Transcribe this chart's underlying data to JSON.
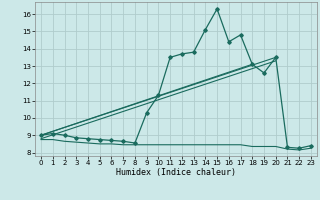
{
  "xlabel": "Humidex (Indice chaleur)",
  "xlim": [
    -0.5,
    23.5
  ],
  "ylim": [
    7.8,
    16.7
  ],
  "yticks": [
    8,
    9,
    10,
    11,
    12,
    13,
    14,
    15,
    16
  ],
  "xticks": [
    0,
    1,
    2,
    3,
    4,
    5,
    6,
    7,
    8,
    9,
    10,
    11,
    12,
    13,
    14,
    15,
    16,
    17,
    18,
    19,
    20,
    21,
    22,
    23
  ],
  "bg_color": "#cce8e8",
  "line_color": "#1a6b5e",
  "grid_color": "#b8d8d8",
  "main_x": [
    0,
    1,
    2,
    3,
    4,
    5,
    6,
    7,
    8,
    9,
    10,
    11,
    12,
    13,
    14,
    15,
    16,
    17,
    18,
    19,
    20,
    21,
    22,
    23
  ],
  "main_y": [
    9.0,
    9.1,
    9.0,
    8.85,
    8.8,
    8.75,
    8.7,
    8.65,
    8.55,
    10.3,
    11.3,
    13.5,
    13.7,
    13.8,
    15.1,
    16.3,
    14.4,
    14.8,
    13.1,
    12.6,
    13.5,
    8.3,
    8.25,
    8.4
  ],
  "low_x": [
    0,
    1,
    2,
    3,
    4,
    5,
    6,
    7,
    8,
    9,
    10,
    11,
    12,
    13,
    14,
    15,
    16,
    17,
    18,
    19,
    20,
    21,
    22,
    23
  ],
  "low_y": [
    8.75,
    8.75,
    8.65,
    8.6,
    8.55,
    8.5,
    8.5,
    8.45,
    8.45,
    8.45,
    8.45,
    8.45,
    8.45,
    8.45,
    8.45,
    8.45,
    8.45,
    8.45,
    8.35,
    8.35,
    8.35,
    8.2,
    8.15,
    8.25
  ],
  "trend1_x": [
    0,
    18
  ],
  "trend1_y": [
    9.0,
    13.1
  ],
  "trend2_x": [
    0,
    20
  ],
  "trend2_y": [
    9.0,
    13.5
  ],
  "trend3_x": [
    0,
    20
  ],
  "trend3_y": [
    8.8,
    13.3
  ]
}
